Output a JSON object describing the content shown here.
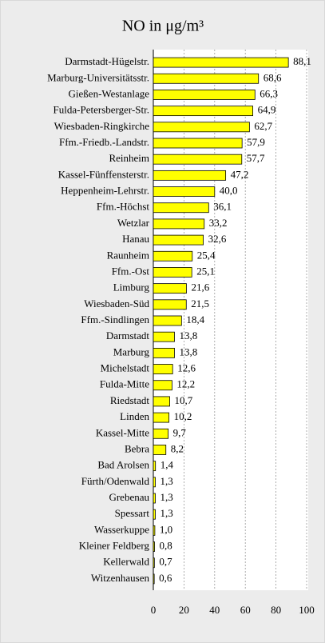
{
  "chart_data": {
    "type": "bar",
    "orientation": "horizontal",
    "title": "NO in μg/m³",
    "categories": [
      "Darmstadt-Hügelstr.",
      "Marburg-Universitätsstr.",
      "Gießen-Westanlage",
      "Fulda-Petersberger-Str.",
      "Wiesbaden-Ringkirche",
      "Ffm.-Friedb.-Landstr.",
      "Reinheim",
      "Kassel-Fünffensterstr.",
      "Heppenheim-Lehrstr.",
      "Ffm.-Höchst",
      "Wetzlar",
      "Hanau",
      "Raunheim",
      "Ffm.-Ost",
      "Limburg",
      "Wiesbaden-Süd",
      "Ffm.-Sindlingen",
      "Darmstadt",
      "Marburg",
      "Michelstadt",
      "Fulda-Mitte",
      "Riedstadt",
      "Linden",
      "Kassel-Mitte",
      "Bebra",
      "Bad Arolsen",
      "Fürth/Odenwald",
      "Grebenau",
      "Spessart",
      "Wasserkuppe",
      "Kleiner Feldberg",
      "Kellerwald",
      "Witzenhausen"
    ],
    "values": [
      88.1,
      68.6,
      66.3,
      64.9,
      62.7,
      57.9,
      57.7,
      47.2,
      40.0,
      36.1,
      33.2,
      32.6,
      25.4,
      25.1,
      21.6,
      21.5,
      18.4,
      13.8,
      13.8,
      12.6,
      12.2,
      10.7,
      10.2,
      9.7,
      8.2,
      1.4,
      1.3,
      1.3,
      1.3,
      1.0,
      0.8,
      0.7,
      0.6
    ],
    "value_labels": [
      "88,1",
      "68,6",
      "66,3",
      "64,9",
      "62,7",
      "57,9",
      "57,7",
      "47,2",
      "40,0",
      "36,1",
      "33,2",
      "32,6",
      "25,4",
      "25,1",
      "21,6",
      "21,5",
      "18,4",
      "13,8",
      "13,8",
      "12,6",
      "12,2",
      "10,7",
      "10,2",
      "9,7",
      "8,2",
      "1,4",
      "1,3",
      "1,3",
      "1,3",
      "1,0",
      "0,8",
      "0,7",
      "0,6"
    ],
    "color": "#ffff00",
    "xlim": [
      0,
      100
    ],
    "xticks": [
      0,
      20,
      40,
      60,
      80,
      100
    ],
    "grid": true
  }
}
